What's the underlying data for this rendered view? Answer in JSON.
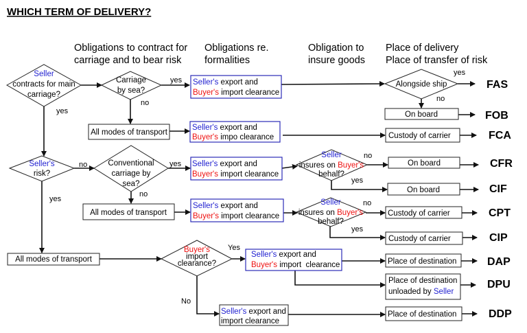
{
  "title": "WHICH TERM OF DELIVERY?",
  "headers": {
    "contract": [
      "Obligations to contract for",
      "carriage and to bear risk"
    ],
    "formalities": [
      "Obligations re.",
      "formalities"
    ],
    "insure": [
      "Obligation to",
      "insure goods"
    ],
    "delivery": [
      "Place of delivery",
      "Place of transfer of risk"
    ]
  },
  "questions": {
    "seller_contracts": {
      "seller": "Seller",
      "line2": "contracts for main",
      "line3": "carriage?"
    },
    "carriage_by_sea": [
      "Carriage",
      "by sea?"
    ],
    "sellers_risk": {
      "seller": "Seller's",
      "line2": "risk?"
    },
    "conventional_sea": [
      "Conventional",
      "carriage by",
      "sea?"
    ],
    "alongside_ship": "Alongside ship",
    "insures": {
      "seller": "Seller",
      "pre": "insures on ",
      "buyer": "Buyer's",
      "line3": "behalf?"
    },
    "buyer_import": {
      "buyer": "Buyer's",
      "line2": "import",
      "line3": "clearance?"
    }
  },
  "labels": {
    "yes": "yes",
    "no": "no",
    "Yes": "Yes",
    "No": "No"
  },
  "modes": "All modes of transport",
  "formalities": {
    "seller": "Seller's",
    "export": " export and",
    "buyer": "Buyer's",
    "import": " import clearance",
    "impo": " impo clearance",
    "import2": " import  clearance",
    "import_only": "import clearance"
  },
  "delivery": {
    "on_board": "On board",
    "custody": "Custody of carrier",
    "destination": "Place of destination",
    "unloaded_pre": "unloaded by ",
    "unloaded_seller": "Seller"
  },
  "terms": [
    "FAS",
    "FOB",
    "FCA",
    "CFR",
    "CIF",
    "CPT",
    "CIP",
    "DAP",
    "DPU",
    "DDP"
  ],
  "colors": {
    "seller": "#1f1fd0",
    "buyer": "#ee1111",
    "formality_border": "#2b2bb8"
  }
}
